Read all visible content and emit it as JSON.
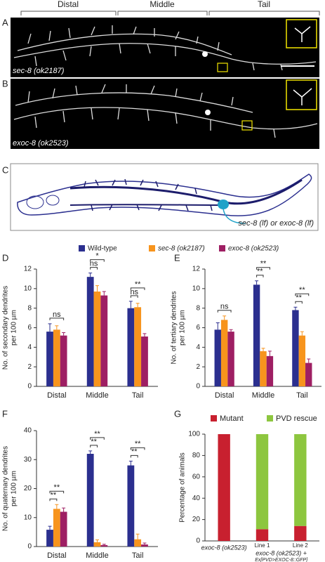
{
  "figure": {
    "regions": [
      "Distal",
      "Middle",
      "Tail"
    ],
    "panel_a": {
      "letter": "A",
      "label": "sec-8 (ok2187)"
    },
    "panel_b": {
      "letter": "B",
      "label": "exoc-8 (ok2523)"
    },
    "panel_c": {
      "letter": "C",
      "label": "sec-8 (lf) or exoc-8 (lf)"
    }
  },
  "chart_data": [
    {
      "type": "bar",
      "panel": "D",
      "ylabel": [
        "No. of secondary dendrites",
        "per 100 µm"
      ],
      "categories": [
        "Distal",
        "Middle",
        "Tail"
      ],
      "series": [
        {
          "name": "Wild-type",
          "color": "#2b2f8f",
          "values": [
            5.6,
            11.2,
            8.0
          ],
          "errors": [
            0.8,
            0.4,
            0.7
          ]
        },
        {
          "name": "sec-8 (ok2187)",
          "color": "#f7941d",
          "values": [
            5.8,
            9.7,
            8.1
          ],
          "errors": [
            0.4,
            0.6,
            0.4
          ]
        },
        {
          "name": "exoc-8 (ok2523)",
          "color": "#9e1f63",
          "values": [
            5.2,
            9.3,
            5.1
          ],
          "errors": [
            0.3,
            0.4,
            0.3
          ]
        }
      ],
      "ylim": [
        0,
        12
      ],
      "yticks": [
        0,
        2,
        4,
        6,
        8,
        10,
        12
      ],
      "annotations": [
        {
          "category": 0,
          "pair": [
            0,
            2
          ],
          "label": "ns"
        },
        {
          "category": 1,
          "pair": [
            0,
            1
          ],
          "label": "ns"
        },
        {
          "category": 1,
          "pair": [
            0,
            2
          ],
          "label": "*"
        },
        {
          "category": 2,
          "pair": [
            0,
            1
          ],
          "label": "ns"
        },
        {
          "category": 2,
          "pair": [
            0,
            2
          ],
          "label": "**"
        }
      ]
    },
    {
      "type": "bar",
      "panel": "E",
      "ylabel": [
        "No. of tertiary dendrites",
        "per 100 µm"
      ],
      "categories": [
        "Distal",
        "Middle",
        "Tail"
      ],
      "series": [
        {
          "color": "#2b2f8f",
          "values": [
            5.8,
            10.4,
            7.8
          ],
          "errors": [
            0.7,
            0.4,
            0.3
          ]
        },
        {
          "color": "#f7941d",
          "values": [
            6.8,
            3.6,
            5.2
          ],
          "errors": [
            0.4,
            0.3,
            0.4
          ]
        },
        {
          "color": "#9e1f63",
          "values": [
            5.6,
            3.1,
            2.4
          ],
          "errors": [
            0.2,
            0.5,
            0.4
          ]
        }
      ],
      "ylim": [
        0,
        12
      ],
      "yticks": [
        0,
        2,
        4,
        6,
        8,
        10,
        12
      ],
      "annotations": [
        {
          "category": 0,
          "pair": [
            0,
            2
          ],
          "label": "ns"
        },
        {
          "category": 1,
          "pair": [
            0,
            1
          ],
          "label": "**"
        },
        {
          "category": 1,
          "pair": [
            0,
            2
          ],
          "label": "**"
        },
        {
          "category": 2,
          "pair": [
            0,
            1
          ],
          "label": "**"
        },
        {
          "category": 2,
          "pair": [
            0,
            2
          ],
          "label": "**"
        }
      ]
    },
    {
      "type": "bar",
      "panel": "F",
      "ylabel": [
        "No. of quaternary dendrites",
        "per 100 µm"
      ],
      "categories": [
        "Distal",
        "Middle",
        "Tail"
      ],
      "series": [
        {
          "color": "#2b2f8f",
          "values": [
            5.8,
            32,
            28
          ],
          "errors": [
            1.2,
            1,
            1.5
          ]
        },
        {
          "color": "#f7941d",
          "values": [
            13,
            1.5,
            2.5
          ],
          "errors": [
            1.5,
            0.8,
            1.8
          ]
        },
        {
          "color": "#9e1f63",
          "values": [
            12,
            0.5,
            0.7
          ],
          "errors": [
            1.3,
            0.3,
            0.5
          ]
        }
      ],
      "ylim": [
        0,
        40
      ],
      "yticks": [
        0,
        10,
        20,
        30,
        40
      ],
      "annotations": [
        {
          "category": 0,
          "pair": [
            0,
            1
          ],
          "label": "**"
        },
        {
          "category": 0,
          "pair": [
            0,
            2
          ],
          "label": "**"
        },
        {
          "category": 1,
          "pair": [
            0,
            1
          ],
          "label": "**"
        },
        {
          "category": 1,
          "pair": [
            0,
            2
          ],
          "label": "**"
        },
        {
          "category": 2,
          "pair": [
            0,
            1
          ],
          "label": "**"
        },
        {
          "category": 2,
          "pair": [
            0,
            2
          ],
          "label": "**"
        }
      ]
    },
    {
      "type": "stacked_bar",
      "panel": "G",
      "ylabel": [
        "Percentage of animals"
      ],
      "categories": [
        "exoc-8 (ok2523)",
        "Line 1",
        "Line 2"
      ],
      "group_label": [
        "exoc-8 (ok2523) +",
        "Ex[PVD>EXOC-8::GFP]"
      ],
      "series": [
        {
          "name": "Mutant",
          "color": "#c8202f",
          "values": [
            100,
            11,
            14
          ]
        },
        {
          "name": "PVD rescue",
          "color": "#8dc63f",
          "values": [
            0,
            89,
            86
          ]
        }
      ],
      "ylim": [
        0,
        100
      ],
      "yticks": [
        0,
        20,
        40,
        60,
        80,
        100
      ]
    }
  ]
}
